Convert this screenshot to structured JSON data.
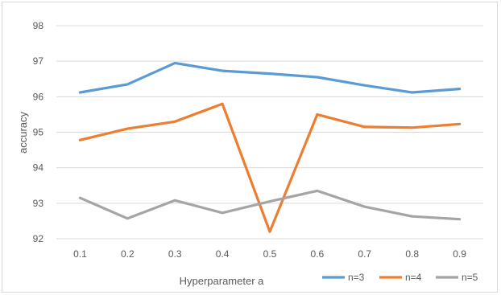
{
  "chart_data": {
    "type": "line",
    "title": "",
    "xlabel": "Hyperparameter  a",
    "ylabel": "accuracy",
    "categories": [
      "0.1",
      "0.2",
      "0.3",
      "0.4",
      "0.5",
      "0.6",
      "0.7",
      "0.8",
      "0.9"
    ],
    "yticks": [
      "92",
      "93",
      "94",
      "95",
      "96",
      "97",
      "98"
    ],
    "ylim": [
      92,
      98
    ],
    "grid": "horizontal",
    "legend_position": "bottom-right",
    "series": [
      {
        "name": "n=3",
        "color": "#5b9bd5",
        "values": [
          96.12,
          96.35,
          96.95,
          96.73,
          96.65,
          96.55,
          96.32,
          96.12,
          96.22
        ]
      },
      {
        "name": "n=4",
        "color": "#ed7d31",
        "values": [
          94.78,
          95.1,
          95.3,
          95.8,
          92.2,
          95.5,
          95.15,
          95.13,
          95.23
        ]
      },
      {
        "name": "n=5",
        "color": "#a5a5a5",
        "values": [
          93.15,
          92.57,
          93.08,
          92.73,
          93.05,
          93.35,
          92.9,
          92.63,
          92.55
        ]
      }
    ]
  }
}
